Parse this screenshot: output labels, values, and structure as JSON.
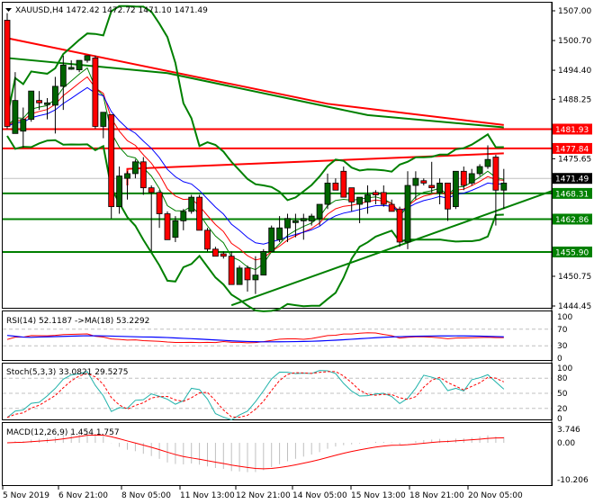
{
  "header": {
    "symbol": "XAUUSD,H4",
    "ohlc": "1472.42 1472.72 1471.10 1471.49",
    "full": "XAUUSD,H4  1472.42 1472.72 1471.10 1471.49"
  },
  "colors": {
    "bull": "#006400",
    "bear": "#ff0000",
    "ma_fast": "#008000",
    "ma_mid": "#ff0000",
    "ma_slow": "#0000ff",
    "bands": "#008000",
    "resistance": "#ff0000",
    "support": "#008000",
    "stoch_main": "#20b2aa",
    "stoch_signal": "#ff0000",
    "rsi": "#ff0000",
    "rsi_ma": "#0000ff",
    "macd_hist": "#c0c0c0",
    "macd_signal": "#ff0000",
    "current_price_bg": "#000000"
  },
  "price_axis": {
    "ticks": [
      "1507.00",
      "1500.70",
      "1494.40",
      "1488.25",
      "1475.65",
      "1450.75",
      "1444.45"
    ],
    "tick_values": [
      1507.0,
      1500.7,
      1494.4,
      1488.25,
      1475.65,
      1450.75,
      1444.45
    ],
    "current_price": "1471.49",
    "levels": [
      {
        "label": "1481.93",
        "value": 1481.93,
        "type": "resistance"
      },
      {
        "label": "1477.84",
        "value": 1477.84,
        "type": "resistance"
      },
      {
        "label": "1468.31",
        "value": 1468.31,
        "type": "support"
      },
      {
        "label": "1462.86",
        "value": 1462.86,
        "type": "support"
      },
      {
        "label": "1455.90",
        "value": 1455.9,
        "type": "support"
      }
    ]
  },
  "time_axis": {
    "labels": [
      "5 Nov 2019",
      "6 Nov 21:00",
      "8 Nov 05:00",
      "11 Nov 13:00",
      "12 Nov 21:00",
      "14 Nov 05:00",
      "15 Nov 13:00",
      "18 Nov 21:00",
      "20 Nov 05:00"
    ]
  },
  "rsi": {
    "title": "RSI(14) 52.1187  ->MA(18) 53.2292",
    "ticks": [
      "100",
      "70",
      "30",
      "0"
    ]
  },
  "stoch": {
    "title": "Stoch(5,3,3) 33.0821 29.5275",
    "ticks": [
      "100",
      "80",
      "50",
      "20",
      "0"
    ]
  },
  "macd": {
    "title": "MACD(12,26,9) 1.454 1.757",
    "ticks": [
      "3.746",
      "0.00",
      "-10.206"
    ]
  },
  "chart_data": {
    "type": "candlestick",
    "title": "XAUUSD,H4",
    "ylabel": "Price",
    "ylim": [
      1444.45,
      1507.0
    ],
    "candles": [
      [
        1505.0,
        1506.5,
        1482.0,
        1482.5
      ],
      [
        1481.0,
        1494.0,
        1481.0,
        1488.0
      ],
      [
        1481.5,
        1486.5,
        1478.0,
        1484.0
      ],
      [
        1484.0,
        1489.0,
        1483.5,
        1490.0
      ],
      [
        1488.0,
        1490.0,
        1486.0,
        1487.5
      ],
      [
        1487.5,
        1488.5,
        1484.0,
        1487.5
      ],
      [
        1487.0,
        1493.0,
        1481.0,
        1491.0
      ],
      [
        1491.0,
        1497.5,
        1486.0,
        1495.5
      ],
      [
        1495.0,
        1496.5,
        1494.5,
        1495.0
      ],
      [
        1494.5,
        1496.0,
        1494.0,
        1496.5
      ],
      [
        1496.5,
        1497.0,
        1496.0,
        1497.5
      ],
      [
        1497.0,
        1497.5,
        1482.0,
        1482.5
      ],
      [
        1482.5,
        1485.0,
        1480.0,
        1485.5
      ],
      [
        1485.0,
        1485.0,
        1463.0,
        1465.5
      ],
      [
        1465.5,
        1474.0,
        1464.0,
        1472.0
      ],
      [
        1471.5,
        1473.0,
        1467.0,
        1472.5
      ],
      [
        1472.5,
        1475.5,
        1471.5,
        1475.0
      ],
      [
        1475.0,
        1476.0,
        1468.0,
        1469.5
      ],
      [
        1469.5,
        1470.0,
        1456.0,
        1468.5
      ],
      [
        1468.5,
        1469.0,
        1461.0,
        1464.0
      ],
      [
        1464.0,
        1464.5,
        1458.5,
        1458.5
      ],
      [
        1459.0,
        1463.5,
        1458.0,
        1462.5
      ],
      [
        1462.5,
        1465.0,
        1460.5,
        1464.5
      ],
      [
        1464.5,
        1468.0,
        1464.0,
        1467.5
      ],
      [
        1467.5,
        1468.0,
        1461.0,
        1460.5
      ],
      [
        1460.5,
        1461.0,
        1456.0,
        1456.5
      ],
      [
        1456.5,
        1457.0,
        1455.0,
        1455.0
      ],
      [
        1455.5,
        1456.0,
        1454.5,
        1455.0
      ],
      [
        1455.0,
        1456.0,
        1451.0,
        1449.0
      ],
      [
        1449.0,
        1453.0,
        1449.0,
        1452.5
      ],
      [
        1452.5,
        1453.0,
        1447.5,
        1450.0
      ],
      [
        1450.0,
        1455.0,
        1447.0,
        1451.0
      ],
      [
        1451.0,
        1456.5,
        1451.0,
        1456.0
      ],
      [
        1456.0,
        1461.5,
        1456.0,
        1461.0
      ],
      [
        1458.5,
        1463.5,
        1458.0,
        1461.0
      ],
      [
        1461.0,
        1464.0,
        1458.0,
        1463.0
      ],
      [
        1462.5,
        1464.0,
        1459.0,
        1462.5
      ],
      [
        1462.5,
        1464.0,
        1458.5,
        1463.0
      ],
      [
        1462.5,
        1464.0,
        1461.5,
        1463.5
      ],
      [
        1463.0,
        1465.5,
        1461.5,
        1466.0
      ],
      [
        1466.0,
        1472.5,
        1465.0,
        1470.5
      ],
      [
        1470.5,
        1471.5,
        1469.5,
        1469.0
      ],
      [
        1473.0,
        1474.0,
        1468.5,
        1467.5
      ],
      [
        1469.5,
        1468.5,
        1464.5,
        1466.5
      ],
      [
        1466.0,
        1467.0,
        1462.0,
        1467.5
      ],
      [
        1466.5,
        1470.0,
        1464.0,
        1468.0
      ],
      [
        1468.5,
        1469.0,
        1466.0,
        1468.0
      ],
      [
        1468.5,
        1470.0,
        1465.5,
        1466.0
      ],
      [
        1466.0,
        1467.0,
        1464.5,
        1464.5
      ],
      [
        1465.0,
        1465.5,
        1457.0,
        1458.0
      ],
      [
        1458.0,
        1473.0,
        1456.5,
        1470.0
      ],
      [
        1470.0,
        1473.0,
        1467.0,
        1471.5
      ],
      [
        1471.0,
        1471.5,
        1470.0,
        1470.5
      ],
      [
        1470.0,
        1475.0,
        1468.5,
        1469.5
      ],
      [
        1468.5,
        1471.5,
        1466.0,
        1470.5
      ],
      [
        1470.5,
        1470.5,
        1462.5,
        1465.0
      ],
      [
        1465.5,
        1472.5,
        1465.0,
        1473.0
      ],
      [
        1473.0,
        1474.0,
        1469.0,
        1470.0
      ],
      [
        1470.5,
        1473.5,
        1470.0,
        1472.5
      ],
      [
        1472.5,
        1474.5,
        1472.0,
        1474.0
      ],
      [
        1474.0,
        1478.5,
        1473.5,
        1475.5
      ],
      [
        1476.0,
        1476.5,
        1461.5,
        1469.0
      ],
      [
        1469.0,
        1473.5,
        1465.0,
        1470.5
      ]
    ]
  }
}
